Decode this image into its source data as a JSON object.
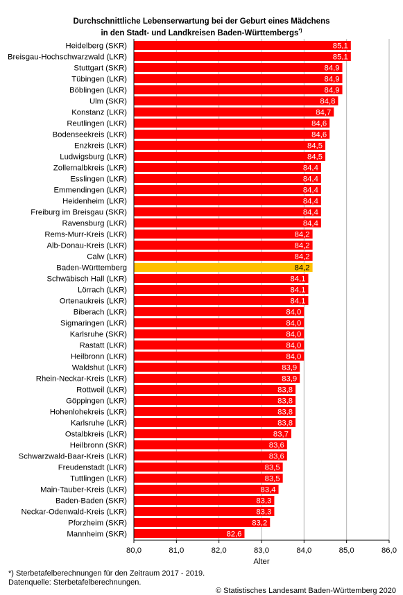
{
  "title": {
    "line1": "Durchschnittliche Lebenserwartung bei der Geburt eines Mädchens",
    "line2": "in den Stadt- und Landkreisen Baden-Württembergs",
    "marker": "*)"
  },
  "chart_data": {
    "type": "bar",
    "orientation": "horizontal",
    "xlabel": "Alter",
    "xlim": [
      80.0,
      86.0
    ],
    "xticks": [
      "80,0",
      "81,0",
      "82,0",
      "83,0",
      "84,0",
      "85,0",
      "86,0"
    ],
    "grid": true,
    "colors": {
      "default": "#ff0000",
      "highlight": "#ffc000"
    },
    "highlight_category": "Baden-Württemberg",
    "categories": [
      "Heidelberg (SKR)",
      "Breisgau-Hochschwarzwald (LKR)",
      "Stuttgart (SKR)",
      "Tübingen (LKR)",
      "Böblingen (LKR)",
      "Ulm (SKR)",
      "Konstanz (LKR)",
      "Reutlingen (LKR)",
      "Bodenseekreis (LKR)",
      "Enzkreis (LKR)",
      "Ludwigsburg (LKR)",
      "Zollernalbkreis (LKR)",
      "Esslingen (LKR)",
      "Emmendingen (LKR)",
      "Heidenheim (LKR)",
      "Freiburg im Breisgau (SKR)",
      "Ravensburg (LKR)",
      "Rems-Murr-Kreis (LKR)",
      "Alb-Donau-Kreis (LKR)",
      "Calw (LKR)",
      "Baden-Württemberg",
      "Schwäbisch Hall (LKR)",
      "Lörrach (LKR)",
      "Ortenaukreis (LKR)",
      "Biberach (LKR)",
      "Sigmaringen (LKR)",
      "Karlsruhe (SKR)",
      "Rastatt (LKR)",
      "Heilbronn (LKR)",
      "Waldshut (LKR)",
      "Rhein-Neckar-Kreis (LKR)",
      "Rottweil (LKR)",
      "Göppingen (LKR)",
      "Hohenlohekreis (LKR)",
      "Karlsruhe (LKR)",
      "Ostalbkreis (LKR)",
      "Heilbronn (SKR)",
      "Schwarzwald-Baar-Kreis (LKR)",
      "Freudenstadt (LKR)",
      "Tuttlingen (LKR)",
      "Main-Tauber-Kreis (LKR)",
      "Baden-Baden (SKR)",
      "Neckar-Odenwald-Kreis (LKR)",
      "Pforzheim (SKR)",
      "Mannheim (SKR)"
    ],
    "values": [
      85.1,
      85.1,
      84.9,
      84.9,
      84.9,
      84.8,
      84.7,
      84.6,
      84.6,
      84.5,
      84.5,
      84.4,
      84.4,
      84.4,
      84.4,
      84.4,
      84.4,
      84.2,
      84.2,
      84.2,
      84.2,
      84.1,
      84.1,
      84.1,
      84.0,
      84.0,
      84.0,
      84.0,
      84.0,
      83.9,
      83.9,
      83.8,
      83.8,
      83.8,
      83.8,
      83.7,
      83.6,
      83.6,
      83.5,
      83.5,
      83.4,
      83.3,
      83.3,
      83.2,
      82.6
    ],
    "value_labels": [
      "85,1",
      "85,1",
      "84,9",
      "84,9",
      "84,9",
      "84,8",
      "84,7",
      "84,6",
      "84,6",
      "84,5",
      "84,5",
      "84,4",
      "84,4",
      "84,4",
      "84,4",
      "84,4",
      "84,4",
      "84,2",
      "84,2",
      "84,2",
      "84,2",
      "84,1",
      "84,1",
      "84,1",
      "84,0",
      "84,0",
      "84,0",
      "84,0",
      "84,0",
      "83,9",
      "83,9",
      "83,8",
      "83,8",
      "83,8",
      "83,8",
      "83,7",
      "83,6",
      "83,6",
      "83,5",
      "83,5",
      "83,4",
      "83,3",
      "83,3",
      "83,2",
      "82,6"
    ]
  },
  "footnotes": {
    "note": "*) Sterbetafelberechnungen für den Zeitraum 2017 - 2019.",
    "source": "Datenquelle: Sterbetafelberechnungen.",
    "copyright": "© Statistisches Landesamt Baden-Württemberg 2020"
  }
}
